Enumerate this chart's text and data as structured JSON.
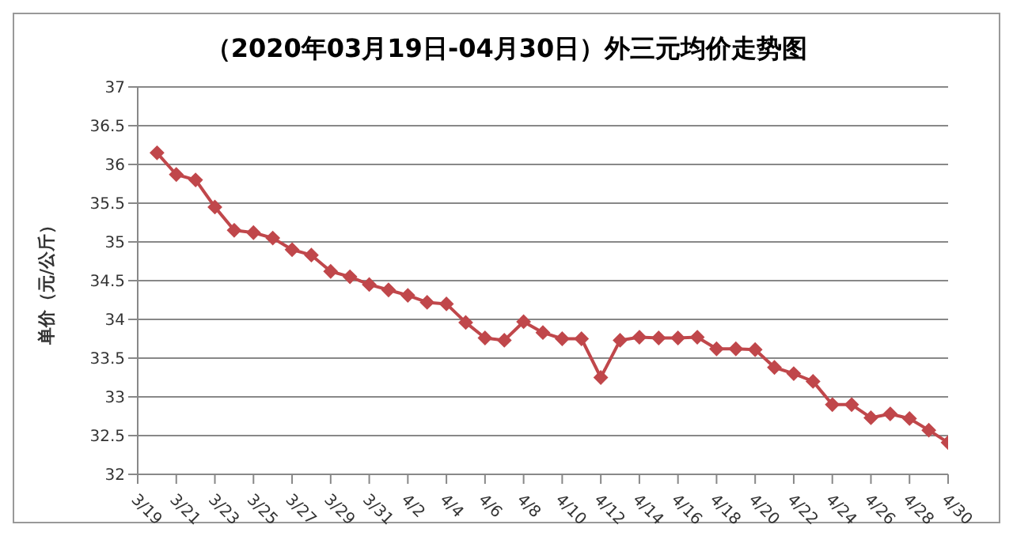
{
  "chart_data": {
    "type": "line",
    "title": "（2020年03月19日-04月30日）外三元均价走势图",
    "ylabel": "单价（元/公斤）",
    "x": [
      "2020-03-20",
      "2020-03-21",
      "2020-03-22",
      "2020-03-23",
      "2020-03-24",
      "2020-03-25",
      "2020-03-26",
      "2020-03-27",
      "2020-03-28",
      "2020-03-29",
      "2020-03-30",
      "2020-03-31",
      "2020-04-01",
      "2020-04-02",
      "2020-04-03",
      "2020-04-04",
      "2020-04-05",
      "2020-04-06",
      "2020-04-07",
      "2020-04-08",
      "2020-04-09",
      "2020-04-10",
      "2020-04-11",
      "2020-04-12",
      "2020-04-13",
      "2020-04-14",
      "2020-04-15",
      "2020-04-16",
      "2020-04-17",
      "2020-04-18",
      "2020-04-19",
      "2020-04-20",
      "2020-04-21",
      "2020-04-22",
      "2020-04-23",
      "2020-04-24",
      "2020-04-25",
      "2020-04-26",
      "2020-04-27",
      "2020-04-28",
      "2020-04-29",
      "2020-04-30"
    ],
    "xlim": [
      "2020-03-19",
      "2020-04-30"
    ],
    "xticks": [
      {
        "value": "2020-03-19",
        "label": "3/19"
      },
      {
        "value": "2020-03-21",
        "label": "3/21"
      },
      {
        "value": "2020-03-23",
        "label": "3/23"
      },
      {
        "value": "2020-03-25",
        "label": "3/25"
      },
      {
        "value": "2020-03-27",
        "label": "3/27"
      },
      {
        "value": "2020-03-29",
        "label": "3/29"
      },
      {
        "value": "2020-03-31",
        "label": "3/31"
      },
      {
        "value": "2020-04-02",
        "label": "4/2"
      },
      {
        "value": "2020-04-04",
        "label": "4/4"
      },
      {
        "value": "2020-04-06",
        "label": "4/6"
      },
      {
        "value": "2020-04-08",
        "label": "4/8"
      },
      {
        "value": "2020-04-10",
        "label": "4/10"
      },
      {
        "value": "2020-04-12",
        "label": "4/12"
      },
      {
        "value": "2020-04-14",
        "label": "4/14"
      },
      {
        "value": "2020-04-16",
        "label": "4/16"
      },
      {
        "value": "2020-04-18",
        "label": "4/18"
      },
      {
        "value": "2020-04-20",
        "label": "4/20"
      },
      {
        "value": "2020-04-22",
        "label": "4/22"
      },
      {
        "value": "2020-04-24",
        "label": "4/24"
      },
      {
        "value": "2020-04-26",
        "label": "4/26"
      },
      {
        "value": "2020-04-28",
        "label": "4/28"
      },
      {
        "value": "2020-04-30",
        "label": "4/30"
      }
    ],
    "ylim": [
      32,
      37
    ],
    "yticks": [
      32,
      32.5,
      33,
      33.5,
      34,
      34.5,
      35,
      35.5,
      36,
      36.5,
      37
    ],
    "grid": "y",
    "marker": "diamond",
    "series": [
      {
        "color": "#c0474b",
        "values": [
          36.15,
          35.87,
          35.8,
          35.45,
          35.15,
          35.12,
          35.05,
          34.9,
          34.83,
          34.62,
          34.55,
          34.45,
          34.38,
          34.31,
          34.22,
          34.2,
          33.96,
          33.76,
          33.73,
          33.97,
          33.83,
          33.75,
          33.75,
          33.25,
          33.73,
          33.77,
          33.76,
          33.76,
          33.77,
          33.62,
          33.62,
          33.61,
          33.38,
          33.3,
          33.2,
          32.9,
          32.9,
          32.73,
          32.78,
          32.72,
          32.57,
          32.41
        ]
      }
    ]
  }
}
